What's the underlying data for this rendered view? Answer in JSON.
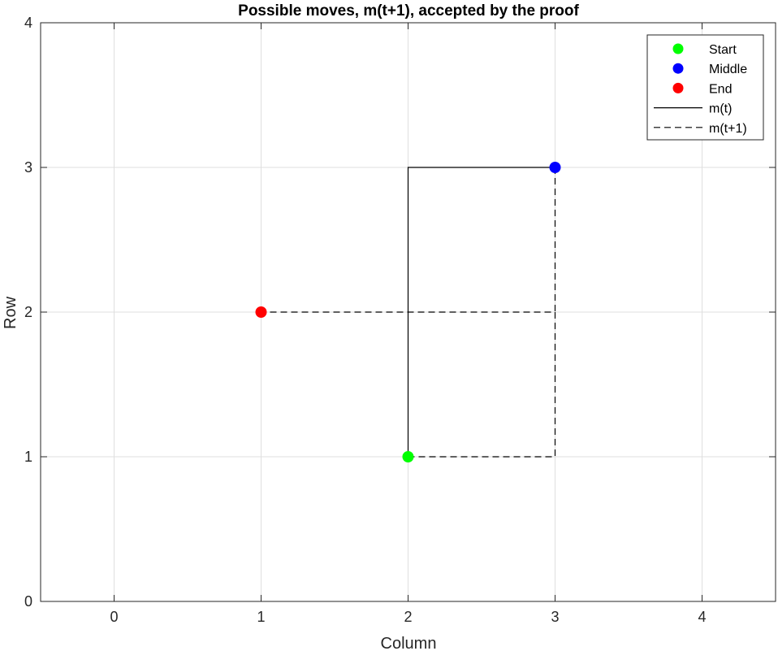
{
  "chart_data": {
    "type": "line",
    "title": "Possible moves, m(t+1), accepted by the proof",
    "xlabel": "Column",
    "ylabel": "Row",
    "xlim": [
      -0.5,
      4.5
    ],
    "ylim": [
      0,
      4
    ],
    "xticks": [
      "0",
      "1",
      "2",
      "3",
      "4"
    ],
    "yticks": [
      "0",
      "1",
      "2",
      "3",
      "4"
    ],
    "grid": true,
    "legend_position": "top-right",
    "points": [
      {
        "name": "Start",
        "x": 2,
        "y": 1,
        "color": "#00ff00"
      },
      {
        "name": "Middle",
        "x": 3,
        "y": 3,
        "color": "#0000ff"
      },
      {
        "name": "End",
        "x": 1,
        "y": 2,
        "color": "#ff0000"
      }
    ],
    "series": [
      {
        "name": "m(t)",
        "style": "solid",
        "color": "#000000",
        "x": [
          2,
          2,
          3
        ],
        "y": [
          1,
          3,
          3
        ]
      },
      {
        "name": "m(t+1)",
        "style": "dashed",
        "color": "#000000",
        "x": [
          2,
          3,
          3,
          1
        ],
        "y": [
          1,
          1,
          2,
          2
        ]
      },
      {
        "name": "m(t+1)",
        "style": "dashed",
        "color": "#000000",
        "x": [
          3,
          3
        ],
        "y": [
          3,
          2
        ]
      }
    ],
    "legend": [
      "Start",
      "Middle",
      "End",
      "m(t)",
      "m(t+1)"
    ]
  }
}
